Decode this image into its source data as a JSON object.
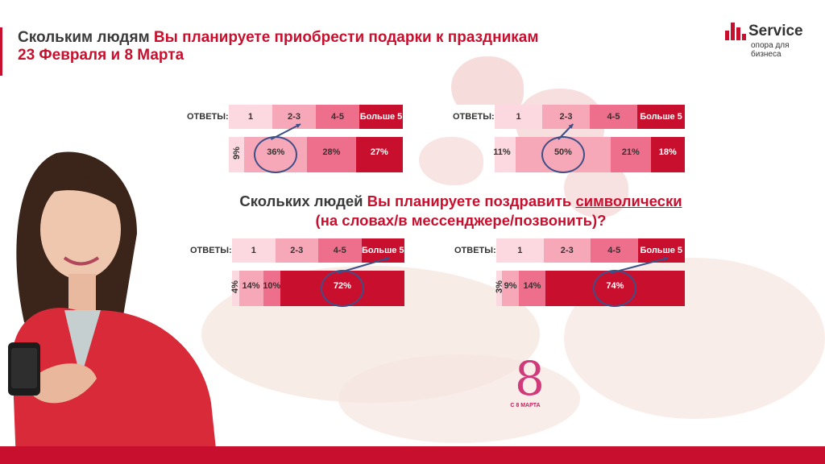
{
  "title": {
    "part1": "Скольким людям ",
    "part2": "Вы планируете приобрести подарки к праздникам",
    "line2": "23 Февраля и 8 Марта"
  },
  "logo": {
    "name": "Service",
    "tagline": "опора для бизнеса"
  },
  "subtitle": {
    "part1": "Скольких людей ",
    "part2": "Вы планируете поздравить ",
    "underlined": "символически",
    "line2": "(на словах/в мессенджере/позвонить)?"
  },
  "badge": {
    "digit": "8",
    "text": "С 8 МАРТА"
  },
  "colors": {
    "accent": "#c8102e",
    "seg1": "#fcd9e0",
    "seg2": "#f6a8b8",
    "seg3": "#ee6f8c",
    "seg4": "#c8102e",
    "ring": "#3e4f88"
  },
  "chart_data": [
    {
      "type": "bar",
      "header_label": "ОТВЕТЫ:",
      "categories": [
        "1",
        "2-3",
        "4-5",
        "Больше 5"
      ],
      "values": [
        9,
        36,
        28,
        27
      ],
      "labels": [
        "9%",
        "36%",
        "28%",
        "27%"
      ],
      "highlight": 1
    },
    {
      "type": "bar",
      "header_label": "ОТВЕТЫ:",
      "categories": [
        "1",
        "2-3",
        "4-5",
        "Больше 5"
      ],
      "values": [
        11,
        50,
        21,
        18
      ],
      "labels": [
        "11%",
        "50%",
        "21%",
        "18%"
      ],
      "highlight": 1
    },
    {
      "type": "bar",
      "header_label": "ОТВЕТЫ:",
      "categories": [
        "1",
        "2-3",
        "4-5",
        "Больше 5"
      ],
      "values": [
        4,
        14,
        10,
        72
      ],
      "labels": [
        "4%",
        "14%",
        "10%",
        "72%"
      ],
      "highlight": 3
    },
    {
      "type": "bar",
      "header_label": "ОТВЕТЫ:",
      "categories": [
        "1",
        "2-3",
        "4-5",
        "Больше 5"
      ],
      "values": [
        3,
        9,
        14,
        74
      ],
      "labels": [
        "3%",
        "9%",
        "14%",
        "74%"
      ],
      "highlight": 3
    }
  ]
}
